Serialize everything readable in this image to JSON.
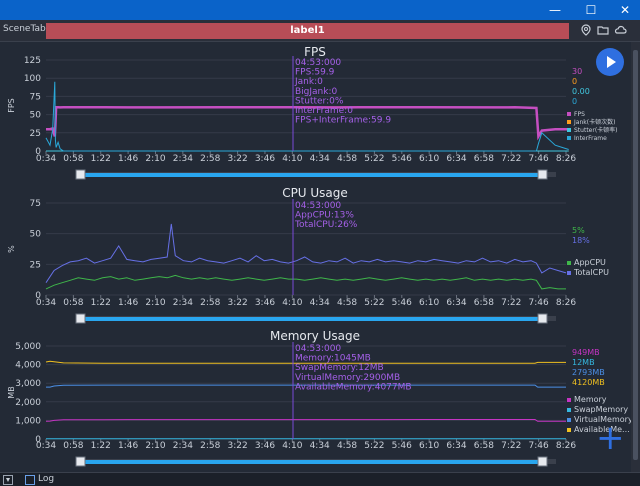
{
  "window": {
    "minimize": "—",
    "maximize": "☐",
    "close": "✕"
  },
  "scene": {
    "tab": "SceneTab",
    "label": "label1"
  },
  "log": {
    "label": "Log"
  },
  "colors": {
    "fps": "#c54fc1",
    "jank": "#ff9d1c",
    "bigjank": "#3c8dff",
    "stutter": "#40c8e0",
    "interframe": "#2aa8d8",
    "appcpu": "#3fb64a",
    "totalcpu": "#6670e6",
    "memory": "#c534c3",
    "swap": "#35b8e0",
    "virtual": "#4b8fe6",
    "available": "#f0c020",
    "playhead": "#7a49d8",
    "slider": "#29a6ef"
  },
  "icons": {
    "location": "location-pin-icon",
    "folder": "folder-icon",
    "cloud": "cloud-icon",
    "play": "play-icon",
    "add": "add-icon"
  },
  "chart_data": [
    {
      "type": "line",
      "title": "FPS",
      "ylabel": "FPS",
      "ylim": [
        0,
        125
      ],
      "yticks": [
        "125",
        "100",
        "75",
        "50",
        "25",
        "0"
      ],
      "x_ticks": [
        "0:34",
        "0:58",
        "1:22",
        "1:46",
        "2:10",
        "2:34",
        "2:58",
        "3:22",
        "3:46",
        "4:10",
        "4:34",
        "4:58",
        "5:22",
        "5:46",
        "6:10",
        "6:34",
        "6:58",
        "7:22",
        "7:46",
        "8:26"
      ],
      "x": [
        34,
        40,
        44,
        47,
        48,
        49,
        52,
        55,
        60,
        80,
        120,
        200,
        300,
        400,
        460,
        470,
        500,
        600,
        700,
        730,
        762,
        765,
        770,
        790,
        800,
        810
      ],
      "series": [
        {
          "name": "FPS",
          "color": "#c54fc1",
          "values": [
            30,
            30,
            31,
            20,
            35,
            60,
            60,
            59.9,
            60,
            60,
            60,
            59.9,
            60,
            60,
            59.9,
            59.9,
            60,
            60,
            59.9,
            60,
            59,
            20,
            28,
            30,
            30,
            30
          ]
        },
        {
          "name": "Jank(卡顿次数)",
          "color": "#ff9d1c",
          "values": [
            0,
            0,
            0,
            0,
            0,
            0,
            0,
            0,
            0,
            0,
            0,
            0,
            0,
            0,
            0,
            0,
            0,
            0,
            0,
            0,
            0,
            0,
            0,
            0,
            0,
            0
          ]
        },
        {
          "name": "Stutter(卡顿率)",
          "color": "#40c8e0",
          "values": [
            0,
            0,
            0,
            0,
            0,
            0,
            0,
            0,
            0,
            0,
            0,
            0,
            0,
            0,
            0,
            0,
            0,
            0,
            0,
            0,
            0,
            0,
            0,
            0,
            0,
            0
          ]
        },
        {
          "name": "InterFrame",
          "color": "#2aa8d8",
          "values": [
            18,
            8,
            30,
            95,
            15,
            5,
            12,
            3,
            0,
            0,
            0,
            0,
            0,
            0,
            0,
            0,
            0,
            0,
            0,
            0,
            0,
            10,
            25,
            8,
            5,
            2
          ]
        }
      ],
      "legend_values": [
        "30",
        "0",
        "0.00",
        "0"
      ],
      "tooltip": [
        "04:53:000",
        "FPS:59.9",
        "Jank:0",
        "BigJank:0",
        "Stutter:0%",
        "InterFrame:0",
        "FPS+InterFrame:59.9"
      ]
    },
    {
      "type": "line",
      "title": "CPU Usage",
      "ylabel": "%",
      "ylim": [
        0,
        75
      ],
      "yticks": [
        "75",
        "50",
        "25",
        "0"
      ],
      "x_ticks": [
        "0:34",
        "0:58",
        "1:22",
        "1:46",
        "2:10",
        "2:34",
        "2:58",
        "3:22",
        "3:46",
        "4:10",
        "4:34",
        "4:58",
        "5:22",
        "5:46",
        "6:10",
        "6:34",
        "6:58",
        "7:22",
        "7:46",
        "8:26"
      ],
      "x": [
        34,
        46,
        58,
        70,
        82,
        94,
        106,
        118,
        130,
        142,
        154,
        166,
        178,
        190,
        202,
        214,
        220,
        226,
        238,
        250,
        262,
        274,
        286,
        298,
        310,
        322,
        334,
        346,
        358,
        370,
        382,
        394,
        406,
        418,
        430,
        442,
        454,
        466,
        478,
        490,
        502,
        514,
        526,
        538,
        550,
        562,
        574,
        586,
        598,
        610,
        622,
        634,
        646,
        658,
        670,
        682,
        694,
        706,
        718,
        730,
        742,
        754,
        762,
        770,
        782,
        794,
        806
      ],
      "series": [
        {
          "name": "AppCPU",
          "color": "#3fb64a",
          "values": [
            5,
            8,
            10,
            12,
            14,
            13,
            12,
            14,
            15,
            13,
            14,
            12,
            13,
            14,
            15,
            14,
            15,
            16,
            14,
            13,
            14,
            13,
            14,
            13,
            12,
            13,
            14,
            13,
            12,
            13,
            14,
            13,
            13,
            12,
            13,
            14,
            13,
            12,
            13,
            12,
            13,
            14,
            13,
            12,
            13,
            14,
            13,
            12,
            13,
            12,
            13,
            12,
            13,
            14,
            12,
            13,
            12,
            13,
            12,
            13,
            12,
            13,
            12,
            5,
            6,
            5,
            5
          ]
        },
        {
          "name": "TotalCPU",
          "color": "#6670e6",
          "values": [
            10,
            20,
            24,
            27,
            28,
            30,
            26,
            28,
            30,
            40,
            29,
            28,
            27,
            29,
            30,
            31,
            58,
            32,
            28,
            27,
            30,
            28,
            27,
            26,
            28,
            30,
            27,
            32,
            28,
            29,
            27,
            26,
            28,
            31,
            27,
            26,
            28,
            27,
            30,
            26,
            28,
            27,
            29,
            27,
            28,
            27,
            26,
            28,
            27,
            29,
            28,
            27,
            26,
            28,
            27,
            30,
            27,
            28,
            26,
            29,
            27,
            28,
            26,
            18,
            22,
            20,
            18
          ]
        }
      ],
      "legend_values": [
        "5%",
        "18%"
      ],
      "tooltip": [
        "04:53:000",
        "AppCPU:13%",
        "TotalCPU:26%"
      ]
    },
    {
      "type": "line",
      "title": "Memory Usage",
      "ylabel": "MB",
      "ylim": [
        0,
        5000
      ],
      "yticks": [
        "5,000",
        "4,000",
        "3,000",
        "2,000",
        "1,000",
        "0"
      ],
      "x_ticks": [
        "0:34",
        "0:58",
        "1:22",
        "1:46",
        "2:10",
        "2:34",
        "2:58",
        "3:22",
        "3:46",
        "4:10",
        "4:34",
        "4:58",
        "5:22",
        "5:46",
        "6:10",
        "6:34",
        "6:58",
        "7:22",
        "7:46",
        "8:26"
      ],
      "x": [
        34,
        40,
        46,
        60,
        120,
        200,
        300,
        400,
        500,
        600,
        700,
        760,
        764,
        770,
        806
      ],
      "series": [
        {
          "name": "Memory",
          "color": "#c534c3",
          "values": [
            950,
            960,
            1000,
            1030,
            1040,
            1045,
            1045,
            1045,
            1045,
            1050,
            1050,
            1050,
            949,
            950,
            949
          ]
        },
        {
          "name": "SwapMemory",
          "color": "#35b8e0",
          "values": [
            12,
            12,
            12,
            12,
            12,
            12,
            12,
            12,
            12,
            12,
            12,
            12,
            12,
            12,
            12
          ]
        },
        {
          "name": "VirtualMemory",
          "color": "#4b8fe6",
          "values": [
            2793,
            2793,
            2850,
            2890,
            2900,
            2900,
            2900,
            2900,
            2900,
            2900,
            2900,
            2900,
            2793,
            2793,
            2793
          ]
        },
        {
          "name": "AvailableMe...",
          "color": "#f0c020",
          "values": [
            4140,
            4180,
            4150,
            4090,
            4077,
            4077,
            4077,
            4077,
            4077,
            4077,
            4077,
            4077,
            4120,
            4120,
            4120
          ]
        }
      ],
      "legend_values": [
        "949MB",
        "12MB",
        "2793MB",
        "4120MB"
      ],
      "tooltip": [
        "04:53:000",
        "Memory:1045MB",
        "SwapMemory:12MB",
        "VirtualMemory:2900MB",
        "AvailableMemory:4077MB"
      ]
    }
  ],
  "playhead_x": 293
}
